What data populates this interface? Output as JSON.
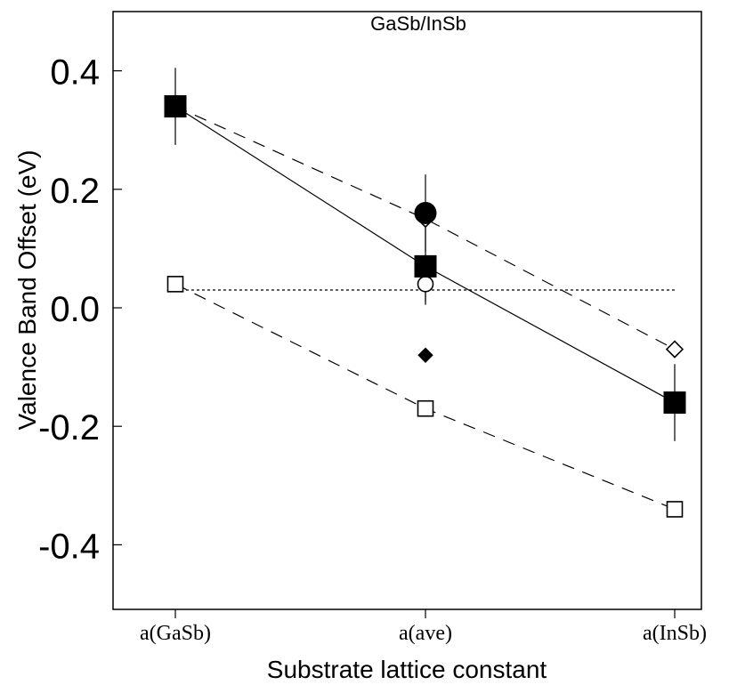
{
  "chart_data": {
    "type": "scatter",
    "title": "GaSb/InSb",
    "xlabel": "Substrate lattice constant",
    "ylabel": "Valence Band Offset (eV)",
    "categories": [
      "a(GaSb)",
      "a(ave)",
      "a(InSb)"
    ],
    "ylim": [
      -0.5,
      0.5
    ],
    "yticks": [
      0.4,
      0.2,
      0.0,
      -0.2,
      -0.4
    ],
    "ytick_labels": [
      "0.4",
      "0.2",
      "0.0",
      "-0.2",
      "-0.4"
    ],
    "grid": false,
    "series": [
      {
        "marker": "filled-square",
        "line": "solid",
        "values": [
          0.34,
          0.07,
          -0.16
        ],
        "error": [
          0.065,
          0.065,
          0.065
        ]
      },
      {
        "marker": "filled-circle",
        "line": "none",
        "values": [
          null,
          0.16,
          null
        ],
        "error": [
          null,
          0.065,
          null
        ]
      },
      {
        "marker": "open-circle",
        "line": "none",
        "values": [
          null,
          0.04,
          null
        ],
        "error": [
          null,
          0.03,
          null
        ]
      },
      {
        "marker": "open-diamond",
        "line": "dashed",
        "values": [
          0.34,
          0.15,
          -0.07
        ]
      },
      {
        "marker": "filled-diamond",
        "line": "none",
        "values": [
          null,
          -0.08,
          null
        ]
      },
      {
        "marker": "open-square",
        "line": "dashed",
        "values": [
          0.04,
          -0.17,
          -0.34
        ]
      }
    ],
    "reference_line": {
      "style": "dotted",
      "y": 0.03,
      "x_from": 0,
      "x_to": 2
    }
  }
}
